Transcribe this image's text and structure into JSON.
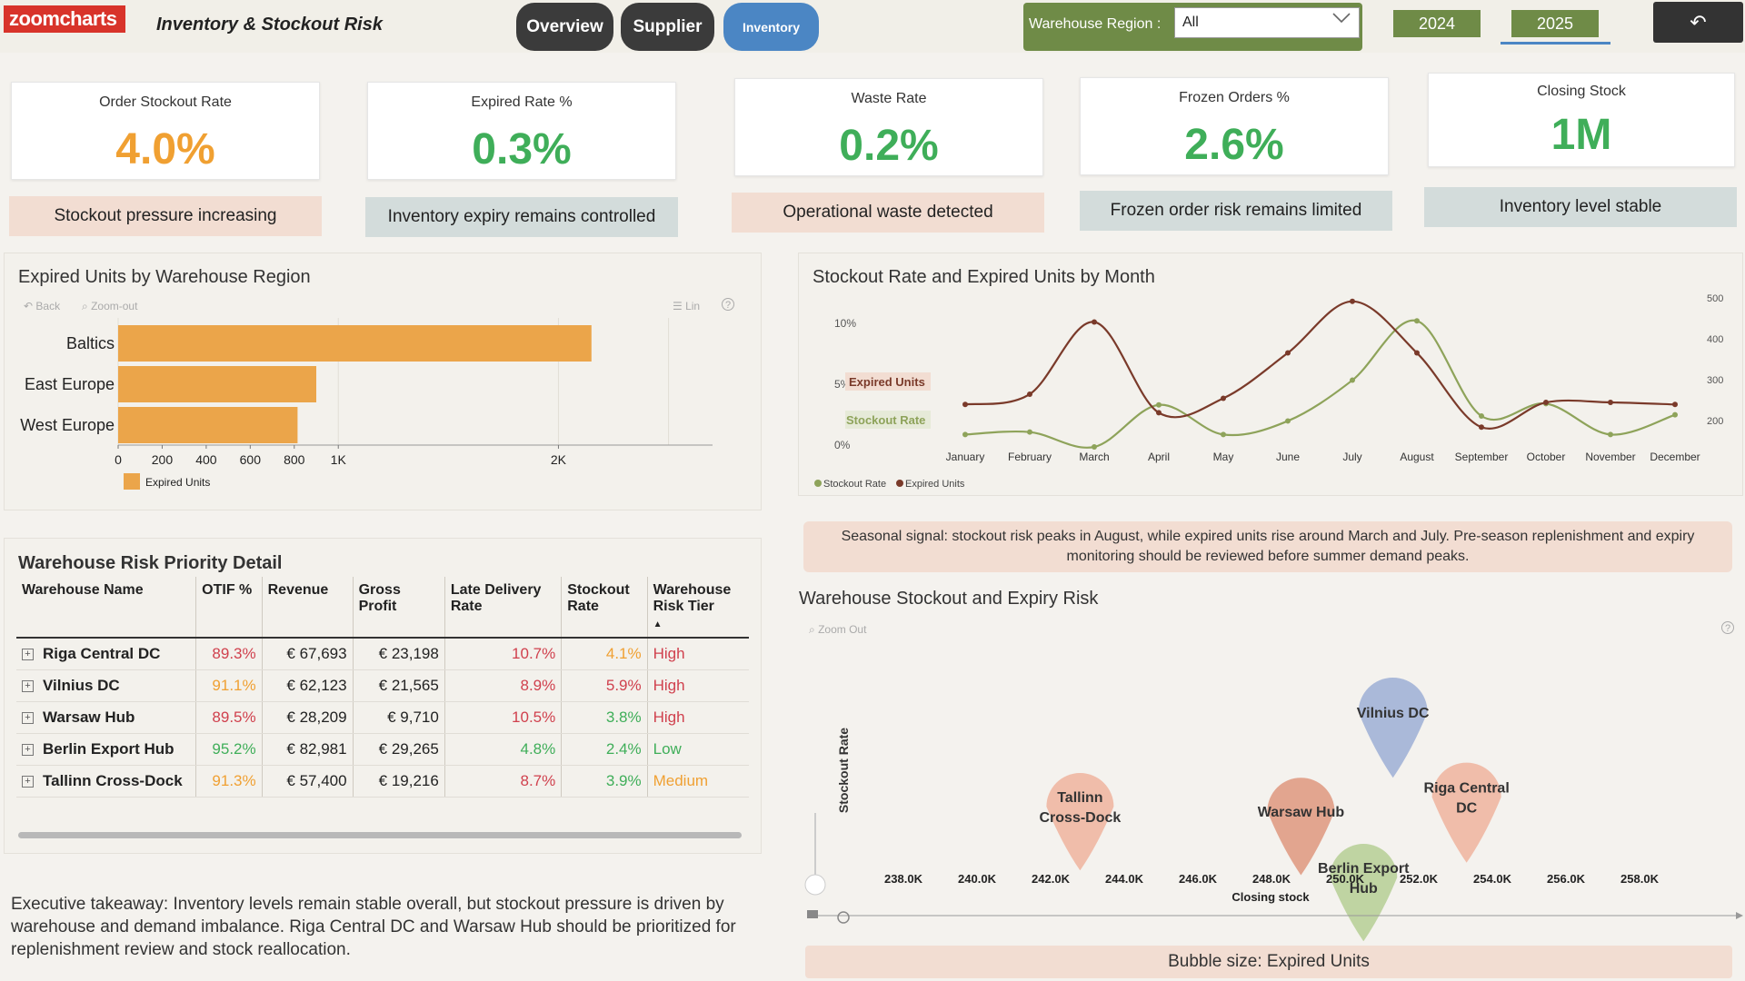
{
  "header": {
    "logo": "zoomcharts",
    "title": "Inventory & Stockout Risk",
    "nav": {
      "overview": "Overview",
      "supplier": "Supplier",
      "inventory": "Inventory"
    },
    "region_label": "Warehouse Region :",
    "region_value": "All",
    "years": [
      "2024",
      "2025"
    ],
    "selected_year": "2025",
    "reset_icon": "↶"
  },
  "kpis": [
    {
      "title": "Order Stockout Rate",
      "value": "4.0%",
      "note": "Stockout pressure increasing",
      "color": "#f0a032",
      "note_style": "pink"
    },
    {
      "title": "Expired Rate %",
      "value": "0.3%",
      "note": "Inventory expiry remains controlled",
      "color": "#3fae59",
      "note_style": "grey"
    },
    {
      "title": "Waste Rate",
      "value": "0.2%",
      "note": "Operational waste detected",
      "color": "#3fae59",
      "note_style": "pink"
    },
    {
      "title": "Frozen Orders %",
      "value": "2.6%",
      "note": "Frozen order risk remains limited",
      "color": "#3fae59",
      "note_style": "grey"
    },
    {
      "title": "Closing Stock",
      "value": "1M",
      "note": "Inventory level stable",
      "color": "#3fae59",
      "note_style": "grey"
    }
  ],
  "expired_chart": {
    "title": "Expired Units by Warehouse Region",
    "toolbar": {
      "back": "Back",
      "zoom_out": "Zoom-out",
      "lin": "Lin",
      "help": "?"
    }
  },
  "line_chart": {
    "title": "Stockout Rate and Expired Units by Month",
    "labels": {
      "expired": "Expired Units",
      "stockout": "Stockout Rate"
    }
  },
  "table": {
    "title": "Warehouse Risk Priority Detail",
    "columns": [
      "Warehouse Name",
      "OTIF %",
      "Revenue",
      "Gross Profit",
      "Late Delivery Rate",
      "Stockout Rate",
      "Warehouse Risk Tier"
    ],
    "rows": [
      {
        "name": "Riga Central DC",
        "otif": "89.3%",
        "otif_c": "red",
        "revenue": "€ 67,693",
        "gp": "€ 23,198",
        "late": "10.7%",
        "late_c": "red",
        "stockout": "4.1%",
        "stockout_c": "orange",
        "tier": "High",
        "tier_c": "red"
      },
      {
        "name": "Vilnius DC",
        "otif": "91.1%",
        "otif_c": "orange",
        "revenue": "€ 62,123",
        "gp": "€ 21,565",
        "late": "8.9%",
        "late_c": "red",
        "stockout": "5.9%",
        "stockout_c": "red",
        "tier": "High",
        "tier_c": "red"
      },
      {
        "name": "Warsaw Hub",
        "otif": "89.5%",
        "otif_c": "red",
        "revenue": "€ 28,209",
        "gp": "€ 9,710",
        "late": "10.5%",
        "late_c": "red",
        "stockout": "3.8%",
        "stockout_c": "green",
        "tier": "High",
        "tier_c": "red"
      },
      {
        "name": "Berlin Export Hub",
        "otif": "95.2%",
        "otif_c": "green",
        "revenue": "€ 82,981",
        "gp": "€ 29,265",
        "late": "4.8%",
        "late_c": "green",
        "stockout": "2.4%",
        "stockout_c": "green",
        "tier": "Low",
        "tier_c": "green"
      },
      {
        "name": "Tallinn Cross-Dock",
        "otif": "91.3%",
        "otif_c": "orange",
        "revenue": "€ 57,400",
        "gp": "€ 19,216",
        "late": "8.7%",
        "late_c": "red",
        "stockout": "3.9%",
        "stockout_c": "green",
        "tier": "Medium",
        "tier_c": "orange"
      }
    ]
  },
  "exec_takeaway": "Executive takeaway: Inventory levels remain stable overall, but stockout pressure is driven by warehouse and demand imbalance. Riga Central DC and Warsaw Hub should be prioritized for replenishment review and stock reallocation.",
  "seasonal_note": "Seasonal signal: stockout risk peaks in August, while expired units rise around March and July. Pre-season replenishment and expiry monitoring should be reviewed before summer demand peaks.",
  "bubble_chart": {
    "title": "Warehouse Stockout and Expiry Risk",
    "zoom_out": "Zoom Out",
    "note": "Bubble size: Expired Units"
  },
  "chart_data": [
    {
      "type": "bar",
      "orientation": "horizontal",
      "categories": [
        "Baltics",
        "East Europe",
        "West Europe"
      ],
      "series": [
        {
          "name": "Expired Units",
          "values": [
            2150,
            900,
            815
          ],
          "color": "#eba54a"
        }
      ],
      "xlim": [
        0,
        2700
      ],
      "ticks": [
        "0",
        "200",
        "400",
        "600",
        "800",
        "1K",
        "2K"
      ],
      "tick_values": [
        0,
        200,
        400,
        600,
        800,
        1000,
        2000
      ]
    },
    {
      "type": "line",
      "categories": [
        "January",
        "February",
        "March",
        "April",
        "May",
        "June",
        "July",
        "August",
        "September",
        "October",
        "November",
        "December"
      ],
      "series": [
        {
          "name": "Stockout Rate",
          "values": [
            1.0,
            1.2,
            0.0,
            3.4,
            1.0,
            2.1,
            5.4,
            10.2,
            2.5,
            3.5,
            1.0,
            2.6
          ],
          "color": "#8ea35a",
          "axis": "left"
        },
        {
          "name": "Expired Units",
          "values": [
            250,
            275,
            450,
            230,
            265,
            375,
            500,
            375,
            195,
            255,
            255,
            250
          ],
          "color": "#7a3a2a",
          "axis": "right"
        }
      ],
      "y_left_ticks": [
        "0%",
        "5%",
        "10%"
      ],
      "y_right_ticks": [
        "200",
        "300",
        "400",
        "500"
      ],
      "legend": [
        "Stockout Rate",
        "Expired Units"
      ]
    },
    {
      "type": "scatter",
      "xlabel": "Closing stock",
      "ylabel": "Stockout Rate",
      "x_ticks": [
        "238.0K",
        "240.0K",
        "242.0K",
        "244.0K",
        "246.0K",
        "248.0K",
        "250.0K",
        "252.0K",
        "254.0K",
        "256.0K",
        "258.0K"
      ],
      "x_tick_values": [
        238000,
        240000,
        242000,
        244000,
        246000,
        248000,
        250000,
        252000,
        254000,
        256000,
        258000
      ],
      "points": [
        {
          "name": "Vilnius DC",
          "x": 251300,
          "y": 5.9,
          "color": "#9fb1d6"
        },
        {
          "name": "Riga Central DC",
          "x": 253300,
          "y": 4.1,
          "color": "#efb5a0"
        },
        {
          "name": "Tallinn Cross-Dock",
          "x": 242800,
          "y": 3.9,
          "color": "#efb5a0"
        },
        {
          "name": "Warsaw Hub",
          "x": 248800,
          "y": 3.8,
          "color": "#df9a82"
        },
        {
          "name": "Berlin Export Hub",
          "x": 250500,
          "y": 2.4,
          "color": "#b7cf97"
        }
      ]
    }
  ]
}
